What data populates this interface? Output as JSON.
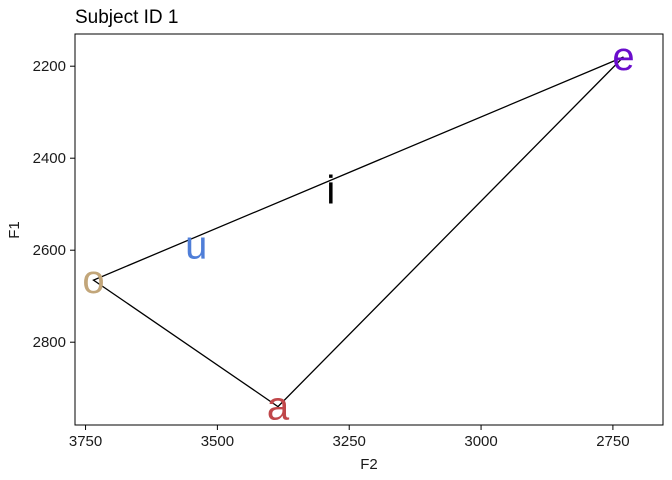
{
  "chart_data": {
    "type": "scatter",
    "title": "Subject ID 1",
    "xlabel": "F2",
    "ylabel": "F1",
    "x_reversed": true,
    "y_reversed": true,
    "xlim": [
      3770,
      2655
    ],
    "ylim": [
      2130,
      2980
    ],
    "x_ticks": [
      {
        "value": 3750,
        "label": "3750"
      },
      {
        "value": 3500,
        "label": "3500"
      },
      {
        "value": 3250,
        "label": "3250"
      },
      {
        "value": 3000,
        "label": "3000"
      },
      {
        "value": 2750,
        "label": "2750"
      }
    ],
    "y_ticks": [
      {
        "value": 2200,
        "label": "2200"
      },
      {
        "value": 2400,
        "label": "2400"
      },
      {
        "value": 2600,
        "label": "2600"
      },
      {
        "value": 2800,
        "label": "2800"
      }
    ],
    "points": [
      {
        "label": "e",
        "f2": 2730,
        "f1": 2180,
        "color": "#6a0dcc"
      },
      {
        "label": "i",
        "f2": 3285,
        "f1": 2470,
        "color": "#000000"
      },
      {
        "label": "u",
        "f2": 3540,
        "f1": 2590,
        "color": "#4f7ed8"
      },
      {
        "label": "o",
        "f2": 3735,
        "f1": 2665,
        "color": "#c2a67a"
      },
      {
        "label": "a",
        "f2": 3385,
        "f1": 2940,
        "color": "#c0474a"
      }
    ],
    "polygon": [
      "e",
      "o",
      "a"
    ],
    "grid": false,
    "legend": "none"
  }
}
